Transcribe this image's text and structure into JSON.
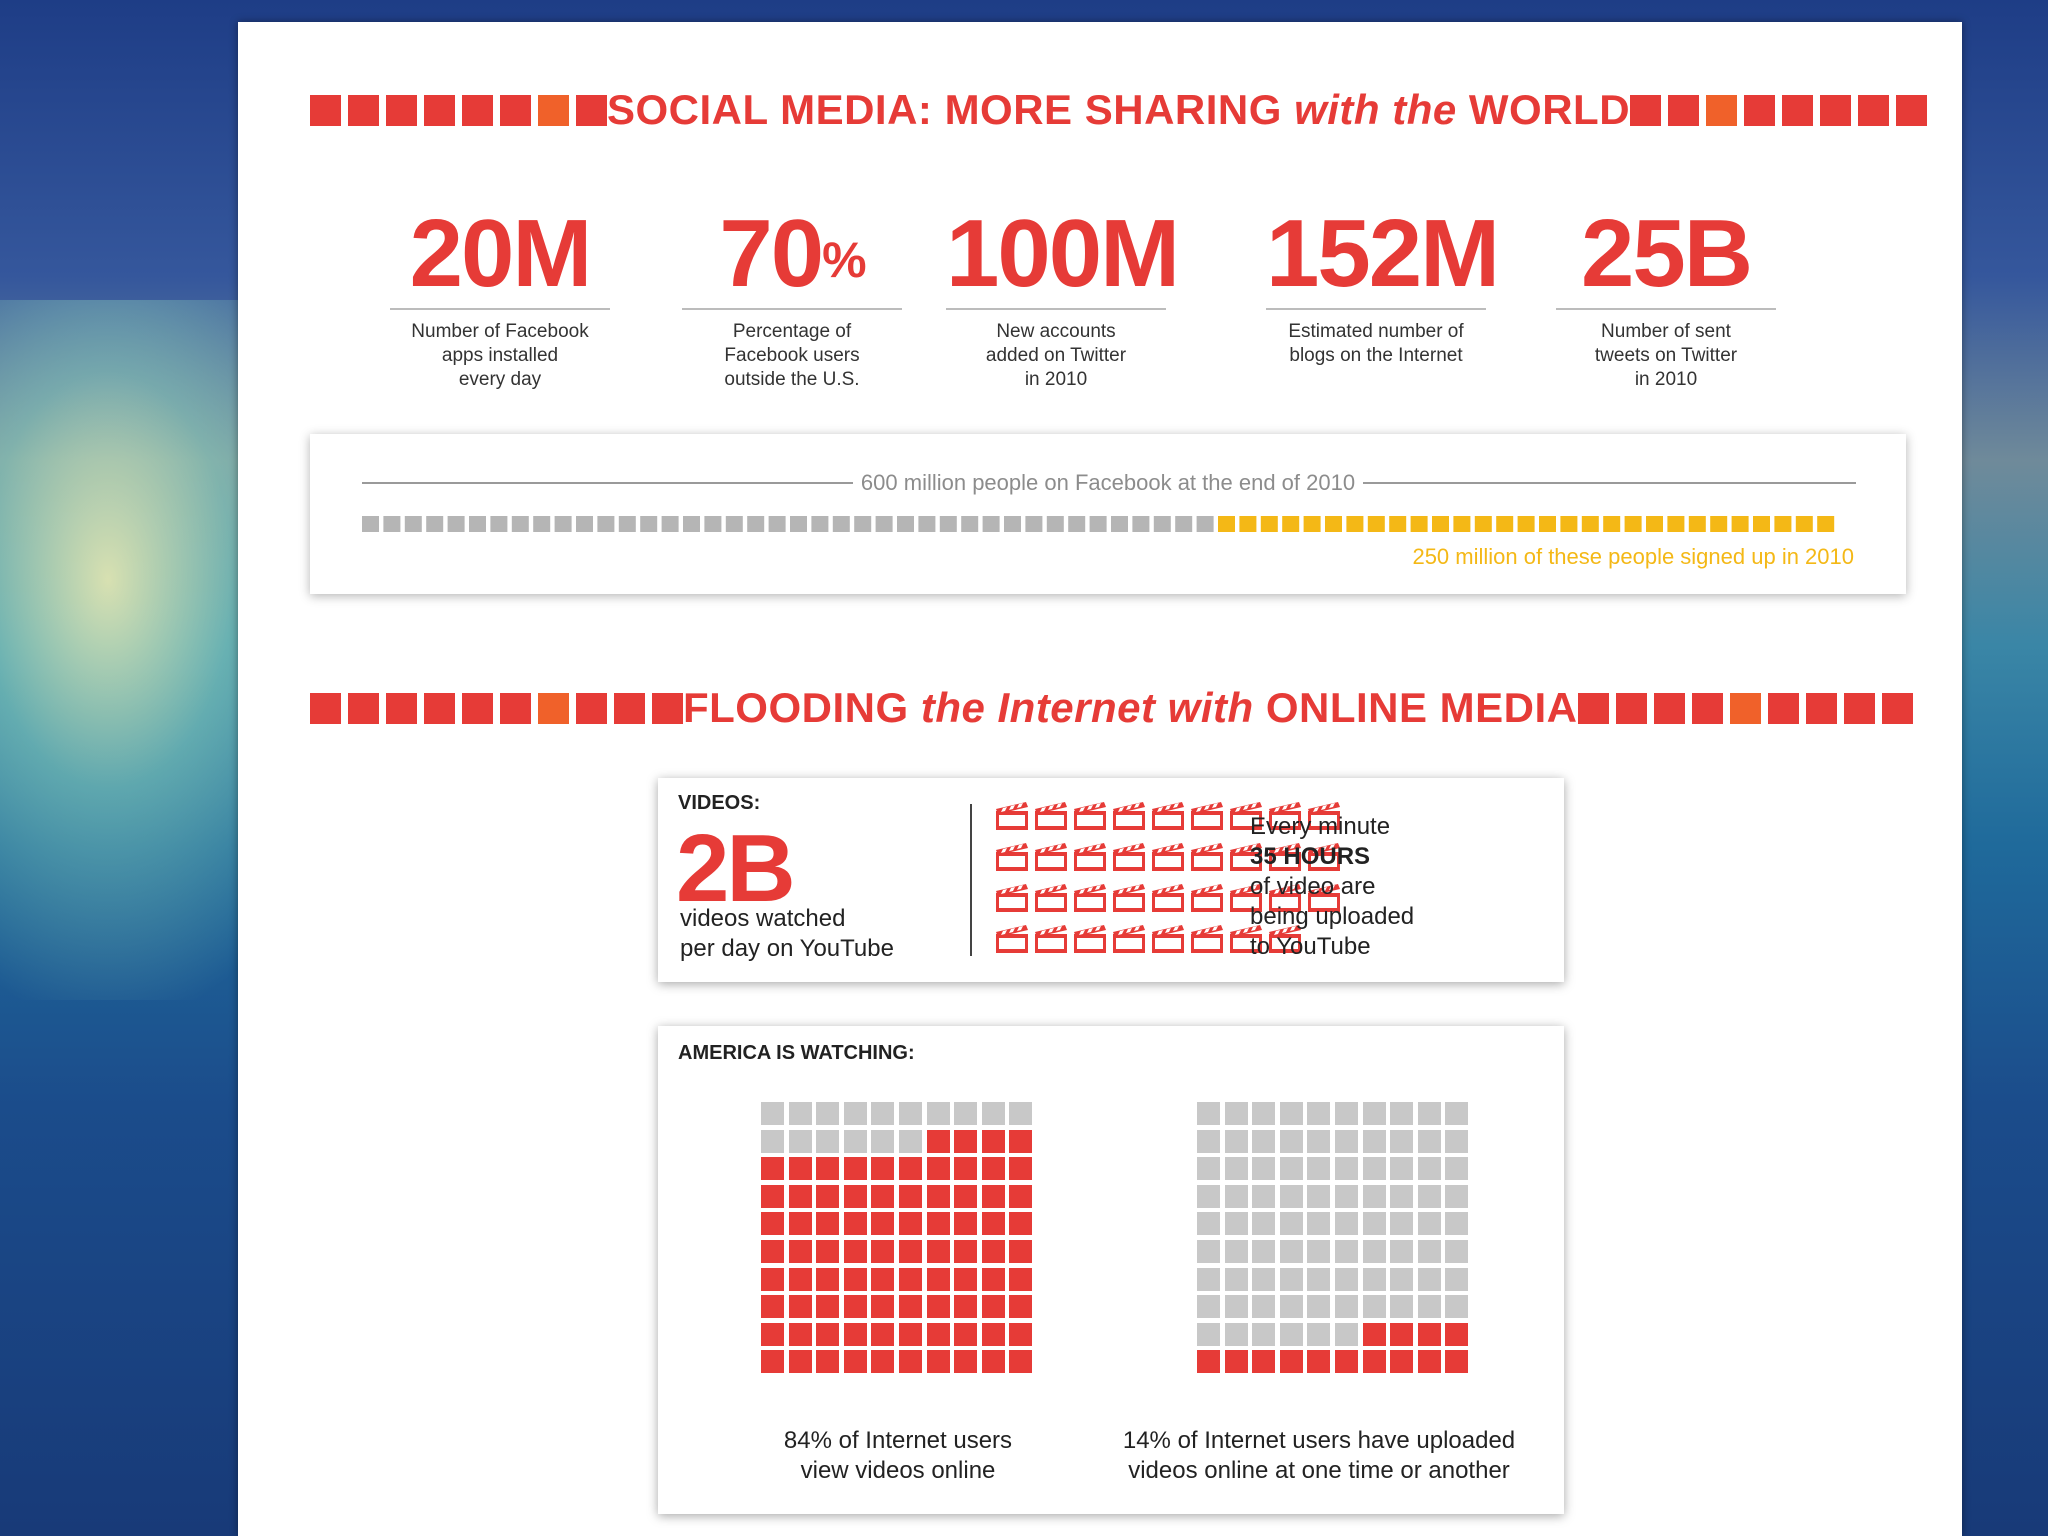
{
  "colors": {
    "red": "#e63b37",
    "orange": "#f0612a",
    "gray": "#c8c8c8",
    "yellow": "#f4b816"
  },
  "section1": {
    "title_parts": [
      "SOCIAL MEDIA: MORE SHARING ",
      "with the",
      " WORLD"
    ]
  },
  "stats": [
    {
      "value": "20M",
      "suffix": "",
      "desc": "Number of Facebook\napps installed\nevery day"
    },
    {
      "value": "70",
      "suffix": "%",
      "desc": "Percentage of\nFacebook users\noutside the U.S."
    },
    {
      "value": "100M",
      "suffix": "",
      "desc": "New accounts\nadded on Twitter\nin 2010"
    },
    {
      "value": "152M",
      "suffix": "",
      "desc": "Estimated number of\nblogs on the Internet"
    },
    {
      "value": "25B",
      "suffix": "",
      "desc": "Number of sent\ntweets on Twitter\nin 2010"
    }
  ],
  "facebook": {
    "top_label": "600 million people on Facebook at the end of 2010",
    "bottom_label": "250 million of these people signed up in 2010",
    "total_millions": 600,
    "signed_up_2010_millions": 250
  },
  "section2": {
    "title_parts": [
      "FLOODING ",
      "the Internet with",
      " ONLINE MEDIA"
    ]
  },
  "videos": {
    "label": "VIDEOS:",
    "big": "2B",
    "desc": "videos watched\nper day on YouTube",
    "right_line1": "Every minute",
    "right_bold": "35 HOURS",
    "right_rest": "of video are\nbeing uploaded\nto YouTube",
    "clapper_icon": "film-clapperboard-icon",
    "clapper_count": 35
  },
  "america": {
    "label": "AMERICA IS WATCHING:",
    "left_caption": "84% of Internet users\nview videos online",
    "right_caption": "14% of Internet users have uploaded\nvideos online at one time or another"
  },
  "chart_data": [
    {
      "type": "waffle",
      "categories": [
        "Facebook users at end of 2010",
        "signed up in 2010"
      ],
      "values": [
        600,
        250
      ],
      "unit": "million"
    },
    {
      "type": "waffle",
      "values": [
        84
      ],
      "unit": "%"
    },
    {
      "type": "waffle",
      "values": [
        14
      ],
      "unit": "%"
    }
  ]
}
